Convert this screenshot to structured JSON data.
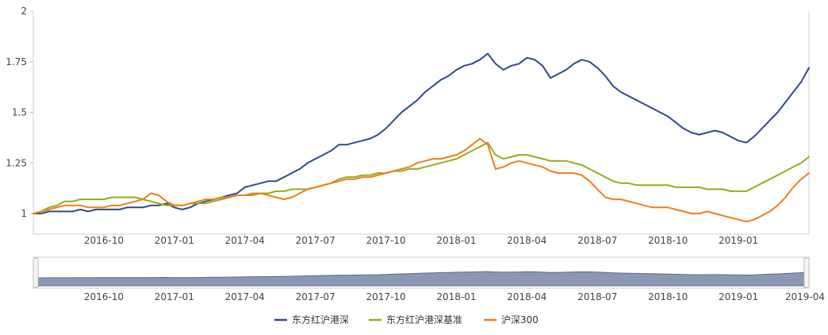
{
  "chart_data": {
    "type": "line",
    "title": "",
    "xlabel": "",
    "ylabel": "",
    "ylim": [
      1,
      2
    ],
    "yticks": [
      "1",
      "1.25",
      "1.5",
      "1.75",
      "2"
    ],
    "ytick_values": [
      1,
      1.25,
      1.5,
      1.75,
      2
    ],
    "xticks": [
      "2016-10",
      "2017-01",
      "2017-04",
      "2017-07",
      "2017-10",
      "2018-01",
      "2018-04",
      "2018-07",
      "2018-10",
      "2019-01"
    ],
    "xtick_positions": [
      10,
      19,
      28,
      37,
      46,
      55,
      64,
      73,
      82,
      91
    ],
    "navigator_ticks": [
      "2016-10",
      "2017-01",
      "2017-04",
      "2017-07",
      "2017-10",
      "2018-01",
      "2018-04",
      "2018-07",
      "2018-10",
      "2019-01",
      "2019-04"
    ],
    "navigator_tick_positions": [
      10,
      19,
      28,
      37,
      46,
      55,
      64,
      73,
      82,
      91,
      100
    ],
    "x_domain": [
      1,
      100
    ],
    "x": [
      1,
      2,
      3,
      4,
      5,
      6,
      7,
      8,
      9,
      10,
      11,
      12,
      13,
      14,
      15,
      16,
      17,
      18,
      19,
      20,
      21,
      22,
      23,
      24,
      25,
      26,
      27,
      28,
      29,
      30,
      31,
      32,
      33,
      34,
      35,
      36,
      37,
      38,
      39,
      40,
      41,
      42,
      43,
      44,
      45,
      46,
      47,
      48,
      49,
      50,
      51,
      52,
      53,
      54,
      55,
      56,
      57,
      58,
      59,
      60,
      61,
      62,
      63,
      64,
      65,
      66,
      67,
      68,
      69,
      70,
      71,
      72,
      73,
      74,
      75,
      76,
      77,
      78,
      79,
      80,
      81,
      82,
      83,
      84,
      85,
      86,
      87,
      88,
      89,
      90,
      91,
      92,
      93,
      94,
      95,
      96,
      97,
      98,
      99,
      100
    ],
    "legend_position": "bottom-center",
    "grid": false,
    "series": [
      {
        "name": "东方红沪港深",
        "color": "#2e4a8c",
        "values": [
          1.0,
          1.0,
          1.01,
          1.01,
          1.01,
          1.01,
          1.02,
          1.01,
          1.02,
          1.02,
          1.02,
          1.02,
          1.03,
          1.03,
          1.03,
          1.04,
          1.04,
          1.05,
          1.03,
          1.02,
          1.03,
          1.05,
          1.06,
          1.07,
          1.08,
          1.09,
          1.1,
          1.13,
          1.14,
          1.15,
          1.16,
          1.16,
          1.18,
          1.2,
          1.22,
          1.25,
          1.27,
          1.29,
          1.31,
          1.34,
          1.34,
          1.35,
          1.36,
          1.37,
          1.39,
          1.42,
          1.46,
          1.5,
          1.53,
          1.56,
          1.6,
          1.63,
          1.66,
          1.68,
          1.71,
          1.73,
          1.74,
          1.76,
          1.79,
          1.74,
          1.71,
          1.73,
          1.74,
          1.77,
          1.76,
          1.73,
          1.67,
          1.69,
          1.71,
          1.74,
          1.76,
          1.75,
          1.72,
          1.68,
          1.63,
          1.6,
          1.58,
          1.56,
          1.54,
          1.52,
          1.5,
          1.48,
          1.45,
          1.42,
          1.4,
          1.39,
          1.4,
          1.41,
          1.4,
          1.38,
          1.36,
          1.35,
          1.38,
          1.42,
          1.46,
          1.5,
          1.55,
          1.6,
          1.65,
          1.72
        ]
      },
      {
        "name": "东方红沪港深基准",
        "color": "#8fae1b",
        "values": [
          1.0,
          1.01,
          1.03,
          1.04,
          1.06,
          1.06,
          1.07,
          1.07,
          1.07,
          1.07,
          1.08,
          1.08,
          1.08,
          1.08,
          1.07,
          1.06,
          1.05,
          1.04,
          1.04,
          1.04,
          1.05,
          1.05,
          1.05,
          1.06,
          1.07,
          1.08,
          1.09,
          1.09,
          1.09,
          1.1,
          1.1,
          1.11,
          1.11,
          1.12,
          1.12,
          1.12,
          1.13,
          1.14,
          1.15,
          1.17,
          1.18,
          1.18,
          1.19,
          1.19,
          1.2,
          1.2,
          1.21,
          1.21,
          1.22,
          1.22,
          1.23,
          1.24,
          1.25,
          1.26,
          1.27,
          1.29,
          1.31,
          1.33,
          1.35,
          1.29,
          1.27,
          1.28,
          1.29,
          1.29,
          1.28,
          1.27,
          1.26,
          1.26,
          1.26,
          1.25,
          1.24,
          1.22,
          1.2,
          1.18,
          1.16,
          1.15,
          1.15,
          1.14,
          1.14,
          1.14,
          1.14,
          1.14,
          1.13,
          1.13,
          1.13,
          1.13,
          1.12,
          1.12,
          1.12,
          1.11,
          1.11,
          1.11,
          1.13,
          1.15,
          1.17,
          1.19,
          1.21,
          1.23,
          1.25,
          1.28
        ]
      },
      {
        "name": "沪深300",
        "color": "#f07d1a",
        "values": [
          1.0,
          1.01,
          1.02,
          1.03,
          1.04,
          1.04,
          1.04,
          1.03,
          1.03,
          1.03,
          1.04,
          1.04,
          1.05,
          1.06,
          1.07,
          1.1,
          1.09,
          1.06,
          1.04,
          1.04,
          1.05,
          1.06,
          1.07,
          1.07,
          1.08,
          1.08,
          1.09,
          1.09,
          1.1,
          1.1,
          1.09,
          1.08,
          1.07,
          1.08,
          1.1,
          1.12,
          1.13,
          1.14,
          1.15,
          1.16,
          1.17,
          1.17,
          1.18,
          1.18,
          1.19,
          1.2,
          1.21,
          1.22,
          1.23,
          1.25,
          1.26,
          1.27,
          1.27,
          1.28,
          1.29,
          1.31,
          1.34,
          1.37,
          1.34,
          1.22,
          1.23,
          1.25,
          1.26,
          1.25,
          1.24,
          1.23,
          1.21,
          1.2,
          1.2,
          1.2,
          1.19,
          1.16,
          1.12,
          1.08,
          1.07,
          1.07,
          1.06,
          1.05,
          1.04,
          1.03,
          1.03,
          1.03,
          1.02,
          1.01,
          1.0,
          1.0,
          1.01,
          1.0,
          0.99,
          0.98,
          0.97,
          0.96,
          0.97,
          0.99,
          1.01,
          1.04,
          1.08,
          1.13,
          1.17,
          1.2
        ]
      }
    ]
  }
}
